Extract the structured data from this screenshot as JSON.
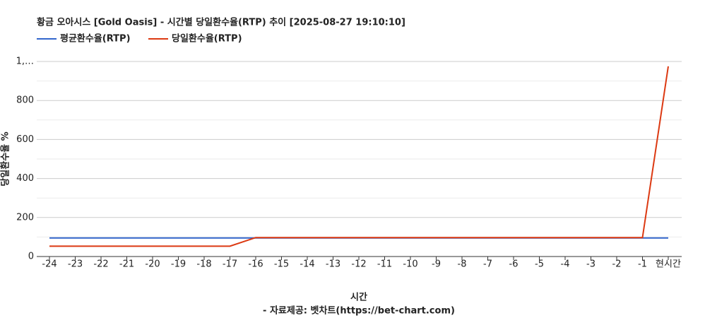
{
  "chart_data": {
    "type": "line",
    "title": "황금 오아시스 [Gold Oasis] - 시간별 당일환수율(RTP) 추이 [2025-08-27 19:10:10]",
    "x_label": "시간",
    "subtitle": "- 자료제공: 벳차트(https://bet-chart.com)",
    "y_label": "당일환수율 %",
    "categories": [
      "-24",
      "-23",
      "-22",
      "-21",
      "-20",
      "-19",
      "-18",
      "-17",
      "-16",
      "-15",
      "-14",
      "-13",
      "-12",
      "-11",
      "-10",
      "-9",
      "-8",
      "-7",
      "-6",
      "-5",
      "-4",
      "-3",
      "-2",
      "-1",
      "현시간"
    ],
    "series": [
      {
        "name": "평균환수율(RTP)",
        "color": "#3366cc",
        "values": [
          95,
          95,
          95,
          95,
          95,
          95,
          95,
          95,
          95,
          95,
          95,
          95,
          95,
          95,
          95,
          95,
          95,
          95,
          95,
          95,
          95,
          95,
          95,
          95,
          95
        ]
      },
      {
        "name": "당일환수율(RTP)",
        "color": "#dc3912",
        "values": [
          53,
          53,
          53,
          53,
          53,
          53,
          53,
          53,
          97,
          97,
          97,
          97,
          97,
          97,
          97,
          97,
          97,
          97,
          97,
          97,
          97,
          97,
          97,
          97,
          975
        ]
      }
    ],
    "ylim": [
      0,
      1000
    ],
    "yticks": [
      0,
      200,
      400,
      600,
      800,
      {
        "value": 1000,
        "label": "1,…"
      }
    ],
    "grid": true,
    "legend": "top"
  }
}
